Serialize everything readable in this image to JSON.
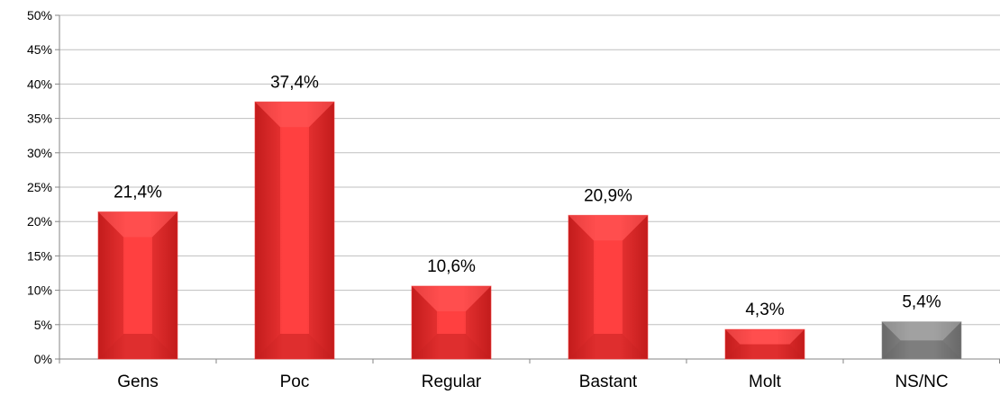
{
  "chart_data": {
    "type": "bar",
    "categories": [
      "Gens",
      "Poc",
      "Regular",
      "Bastant",
      "Molt",
      "NS/NC"
    ],
    "values": [
      21.4,
      37.4,
      10.6,
      20.9,
      4.3,
      5.4
    ],
    "data_labels": [
      "21,4%",
      "37,4%",
      "10,6%",
      "20,9%",
      "4,3%",
      "5,4%"
    ],
    "ylim": [
      0,
      50
    ],
    "yticks": [
      "0%",
      "5%",
      "10%",
      "15%",
      "20%",
      "25%",
      "30%",
      "35%",
      "40%",
      "45%",
      "50%"
    ],
    "grid": true,
    "legend": "none",
    "colors": {
      "bar_main": "#f03535",
      "bar_light": "#ff5a5a",
      "bar_dark": "#b81818",
      "bar_nsnc": "#8a8a8a",
      "bar_nsnc_light": "#a8a8a8",
      "bar_nsnc_dark": "#5e5e5e",
      "grid": "#bfbfbf",
      "axis": "#868686"
    },
    "bar_color_keys": [
      "red",
      "red",
      "red",
      "red",
      "red",
      "gray"
    ]
  }
}
